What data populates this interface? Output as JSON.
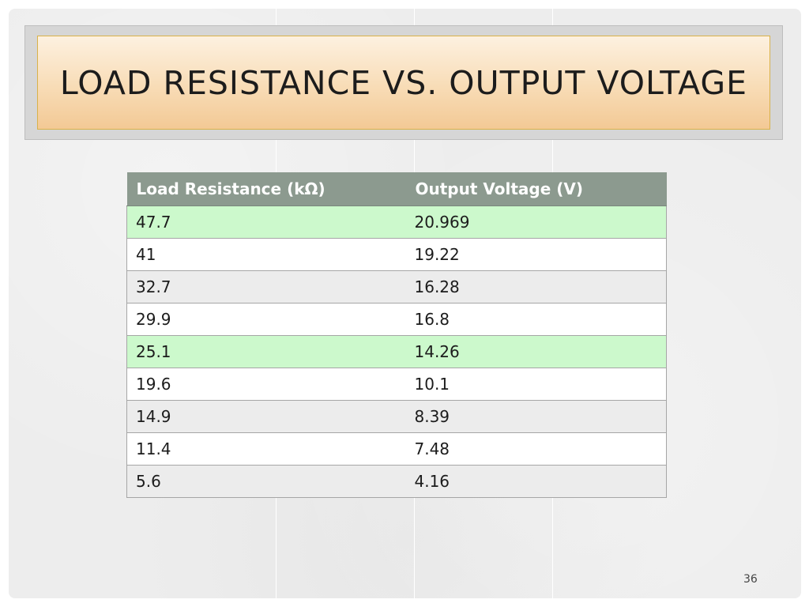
{
  "slide": {
    "title": "LOAD RESISTANCE VS. OUTPUT VOLTAGE",
    "page_number": "36"
  },
  "table": {
    "headers": [
      "Load Resistance (kΩ)",
      "Output Voltage (V)"
    ],
    "rows": [
      {
        "resistance": "47.7",
        "voltage": "20.969",
        "highlight": true
      },
      {
        "resistance": "41",
        "voltage": "19.22",
        "highlight": false
      },
      {
        "resistance": "32.7",
        "voltage": "16.28",
        "highlight": false
      },
      {
        "resistance": "29.9",
        "voltage": "16.8",
        "highlight": false
      },
      {
        "resistance": "25.1",
        "voltage": "14.26",
        "highlight": true
      },
      {
        "resistance": "19.6",
        "voltage": "10.1",
        "highlight": false
      },
      {
        "resistance": "14.9",
        "voltage": "8.39",
        "highlight": false
      },
      {
        "resistance": "11.4",
        "voltage": "7.48",
        "highlight": false
      },
      {
        "resistance": "5.6",
        "voltage": "4.16",
        "highlight": false
      }
    ]
  },
  "colors": {
    "header_bg": "#8c9a8f",
    "highlight_row": "#ccf9cc",
    "alt_row": "#ececec",
    "title_gradient_top": "#fdf1e0",
    "title_gradient_bottom": "#f3c995"
  }
}
